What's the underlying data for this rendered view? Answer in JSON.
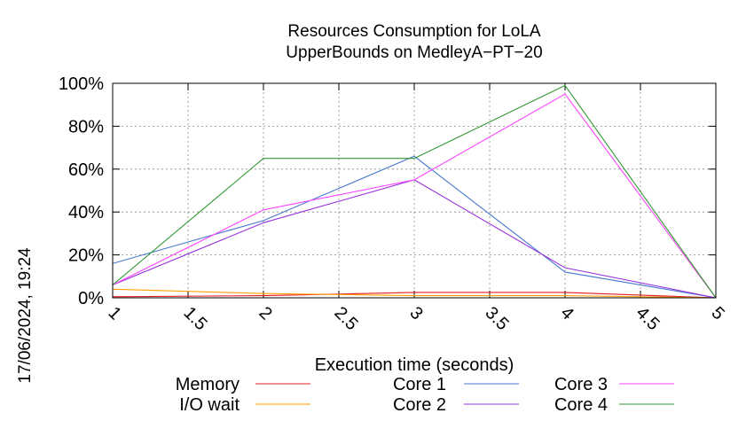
{
  "chart_data": {
    "type": "line",
    "title": [
      "Resources Consumption for LoLA",
      "UpperBounds on MedleyA−PT−20"
    ],
    "xlabel": "Execution time (seconds)",
    "ylabel": "",
    "side_label": "17/06/2024, 19:24",
    "xlim": [
      1,
      5
    ],
    "ylim": [
      0,
      100
    ],
    "xticks": [
      1,
      1.5,
      2,
      2.5,
      3,
      3.5,
      4,
      4.5,
      5
    ],
    "xtick_labels": [
      "1",
      "1.5",
      "2",
      "2.5",
      "3",
      "3.5",
      "4",
      "4.5",
      "5"
    ],
    "yticks": [
      0,
      20,
      40,
      60,
      80,
      100
    ],
    "ytick_labels": [
      "0%",
      "20%",
      "40%",
      "60%",
      "80%",
      "100%"
    ],
    "grid": true,
    "legend_position": "bottom",
    "x": [
      1,
      2,
      3,
      4,
      5
    ],
    "series": [
      {
        "name": "Memory",
        "color": "#e41a1c",
        "values": [
          0.5,
          1.0,
          2.5,
          2.5,
          0
        ]
      },
      {
        "name": "I/O wait",
        "color": "#ff9f00",
        "values": [
          4.0,
          2.0,
          1.0,
          1.0,
          0
        ]
      },
      {
        "name": "Core 1",
        "color": "#4477cc",
        "values": [
          16,
          36,
          66,
          12,
          0
        ]
      },
      {
        "name": "Core 2",
        "color": "#9933dd",
        "values": [
          6,
          35,
          55,
          14,
          0
        ]
      },
      {
        "name": "Core 3",
        "color": "#ff44ff",
        "values": [
          6,
          41,
          55,
          95,
          0
        ]
      },
      {
        "name": "Core 4",
        "color": "#339933",
        "values": [
          6,
          65,
          65,
          99,
          0
        ]
      }
    ]
  }
}
